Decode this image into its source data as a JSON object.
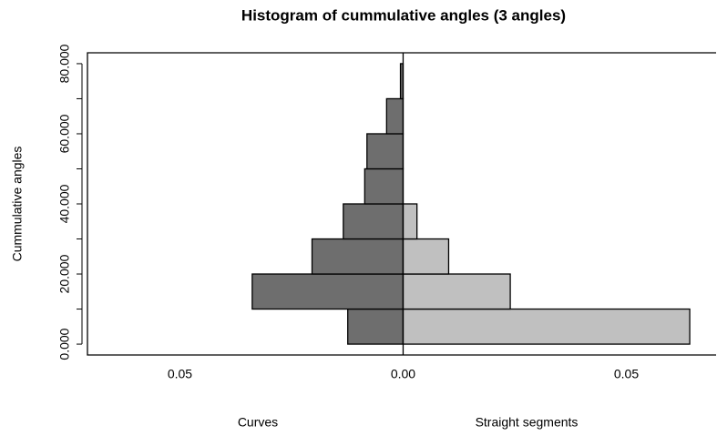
{
  "chart_data": {
    "type": "back-to-back-histogram",
    "title": "Histogram of cummulative angles (3 angles)",
    "ylabel": "Cummulative angles",
    "bins": [
      0,
      10,
      20,
      30,
      40,
      50,
      60,
      70,
      80
    ],
    "series": [
      {
        "name": "Curves",
        "color": "#6e6e6e",
        "values": [
          -0.0124,
          -0.0338,
          -0.0204,
          -0.0134,
          -0.0086,
          -0.0081,
          -0.0037,
          -0.0006
        ]
      },
      {
        "name": "Straight segments",
        "color": "#c0c0c0",
        "values": [
          0.0642,
          0.024,
          0.0102,
          0.0031,
          0,
          0,
          0,
          0
        ]
      }
    ],
    "xlim": [
      -0.0707,
      0.0701
    ],
    "xticks": [
      {
        "value": -0.05,
        "label": "0.05"
      },
      {
        "value": 0,
        "label": "0.00"
      },
      {
        "value": 0.05,
        "label": "0.05"
      }
    ],
    "ylim": [
      -3.1,
      83.1
    ],
    "yticks": [
      {
        "value": 0,
        "label": "0.000"
      },
      {
        "value": 20,
        "label": "20.000"
      },
      {
        "value": 40,
        "label": "40.000"
      },
      {
        "value": 60,
        "label": "60.000"
      },
      {
        "value": 80,
        "label": "80.000"
      }
    ],
    "yminor_ticks": [
      10,
      30,
      50,
      70
    ]
  }
}
